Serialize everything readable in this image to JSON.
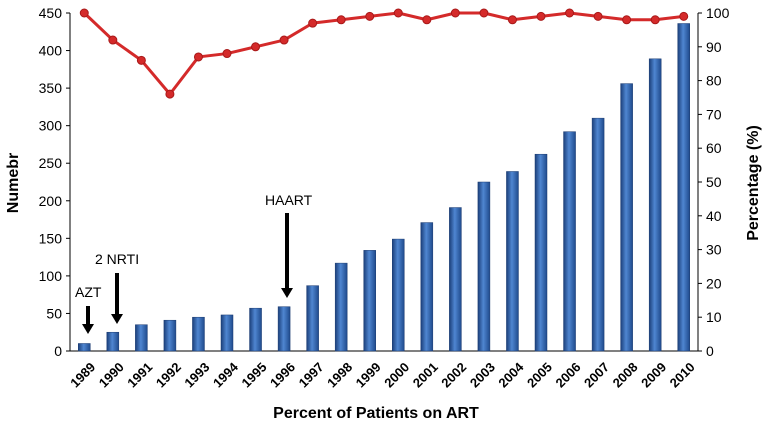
{
  "chart_data": {
    "type": "bar",
    "categories": [
      "1989",
      "1990",
      "1991",
      "1992",
      "1993",
      "1994",
      "1995",
      "1996",
      "1997",
      "1998",
      "1999",
      "2000",
      "2001",
      "2002",
      "2003",
      "2004",
      "2005",
      "2006",
      "2007",
      "2008",
      "2009",
      "2010"
    ],
    "series": [
      {
        "type": "bar",
        "axis": "left",
        "color": "#2f62ad",
        "values": [
          10,
          25,
          35,
          41,
          45,
          48,
          57,
          59,
          87,
          117,
          134,
          149,
          171,
          191,
          225,
          239,
          262,
          292,
          310,
          356,
          389,
          436
        ]
      },
      {
        "type": "line",
        "axis": "right",
        "color": "#d42a2a",
        "values": [
          100,
          92,
          86,
          76,
          87,
          88,
          90,
          92,
          97,
          98,
          99,
          100,
          98,
          100,
          100,
          98,
          99,
          100,
          99,
          98,
          98,
          99
        ]
      }
    ],
    "xlabel": "Percent of Patients on ART",
    "ylabel": "Numebr",
    "y2label": "Percentage (%)",
    "ylim": [
      0,
      450
    ],
    "yticks": [
      "0",
      "50",
      "100",
      "150",
      "200",
      "250",
      "300",
      "350",
      "400",
      "450"
    ],
    "y2lim": [
      0,
      100
    ],
    "y2ticks": [
      "0",
      "10",
      "20",
      "30",
      "40",
      "50",
      "60",
      "70",
      "80",
      "90",
      "100"
    ],
    "grid": false,
    "legend": "none",
    "annotations": [
      {
        "text": "AZT",
        "category": "1989"
      },
      {
        "text": "2 NRTI",
        "category": "1990"
      },
      {
        "text": "HAART",
        "category": "1996"
      }
    ]
  }
}
